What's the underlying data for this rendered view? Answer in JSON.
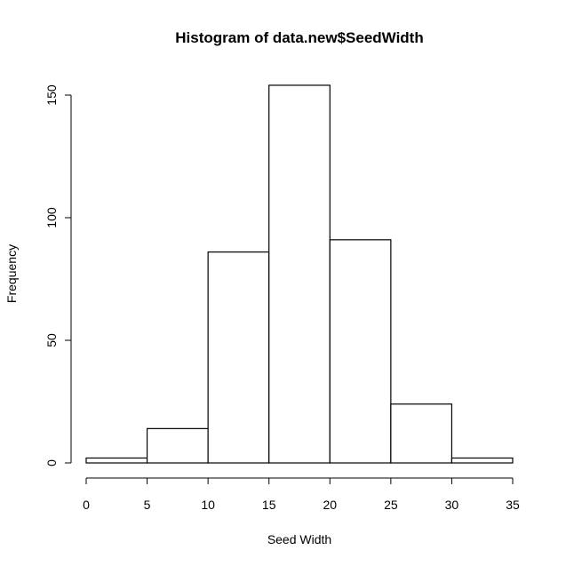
{
  "chart_data": {
    "type": "bar",
    "title": "Histogram of data.new$SeedWidth",
    "xlabel": "Seed Width",
    "ylabel": "Frequency",
    "bins": [
      {
        "start": 0,
        "end": 5,
        "count": 2
      },
      {
        "start": 5,
        "end": 10,
        "count": 14
      },
      {
        "start": 10,
        "end": 15,
        "count": 86
      },
      {
        "start": 15,
        "end": 20,
        "count": 154
      },
      {
        "start": 20,
        "end": 25,
        "count": 91
      },
      {
        "start": 25,
        "end": 30,
        "count": 24
      },
      {
        "start": 30,
        "end": 35,
        "count": 2
      }
    ],
    "xlim": [
      0,
      35
    ],
    "ylim": [
      0,
      154
    ],
    "xticks": [
      "0",
      "5",
      "10",
      "15",
      "20",
      "25",
      "30",
      "35"
    ],
    "yticks": [
      "0",
      "50",
      "100",
      "150"
    ],
    "grid": false
  }
}
